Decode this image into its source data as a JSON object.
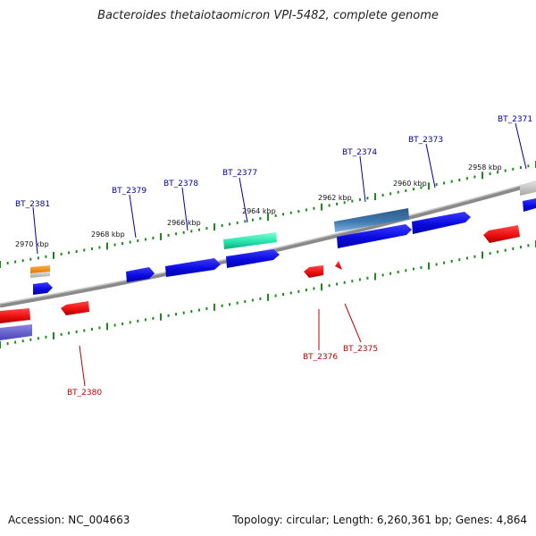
{
  "title": "Bacteroides thetaiotaomicron VPI-5482, complete genome",
  "footer": {
    "accession": "Accession: NC_004663",
    "info": "Topology: circular; Length: 6,260,361 bp; Genes: 4,864"
  },
  "scale_labels": [
    "2970 kbp",
    "2968 kbp",
    "2966 kbp",
    "2964 kbp",
    "2962 kbp",
    "2960 kbp",
    "2958 kbp"
  ],
  "genes": {
    "forward": [
      "BT_2381",
      "BT_2379",
      "BT_2378",
      "BT_2377",
      "BT_2374",
      "BT_2373",
      "BT_2371"
    ],
    "reverse": [
      "BT_2380",
      "BT_2376",
      "BT_2375"
    ]
  },
  "colors": {
    "forward_gene": "#1010e0",
    "reverse_gene": "#ee1111",
    "forward_label": "#00009a",
    "reverse_label": "#c00000",
    "tick": "#1c8a1c",
    "backbone": "#8a8a8a"
  }
}
